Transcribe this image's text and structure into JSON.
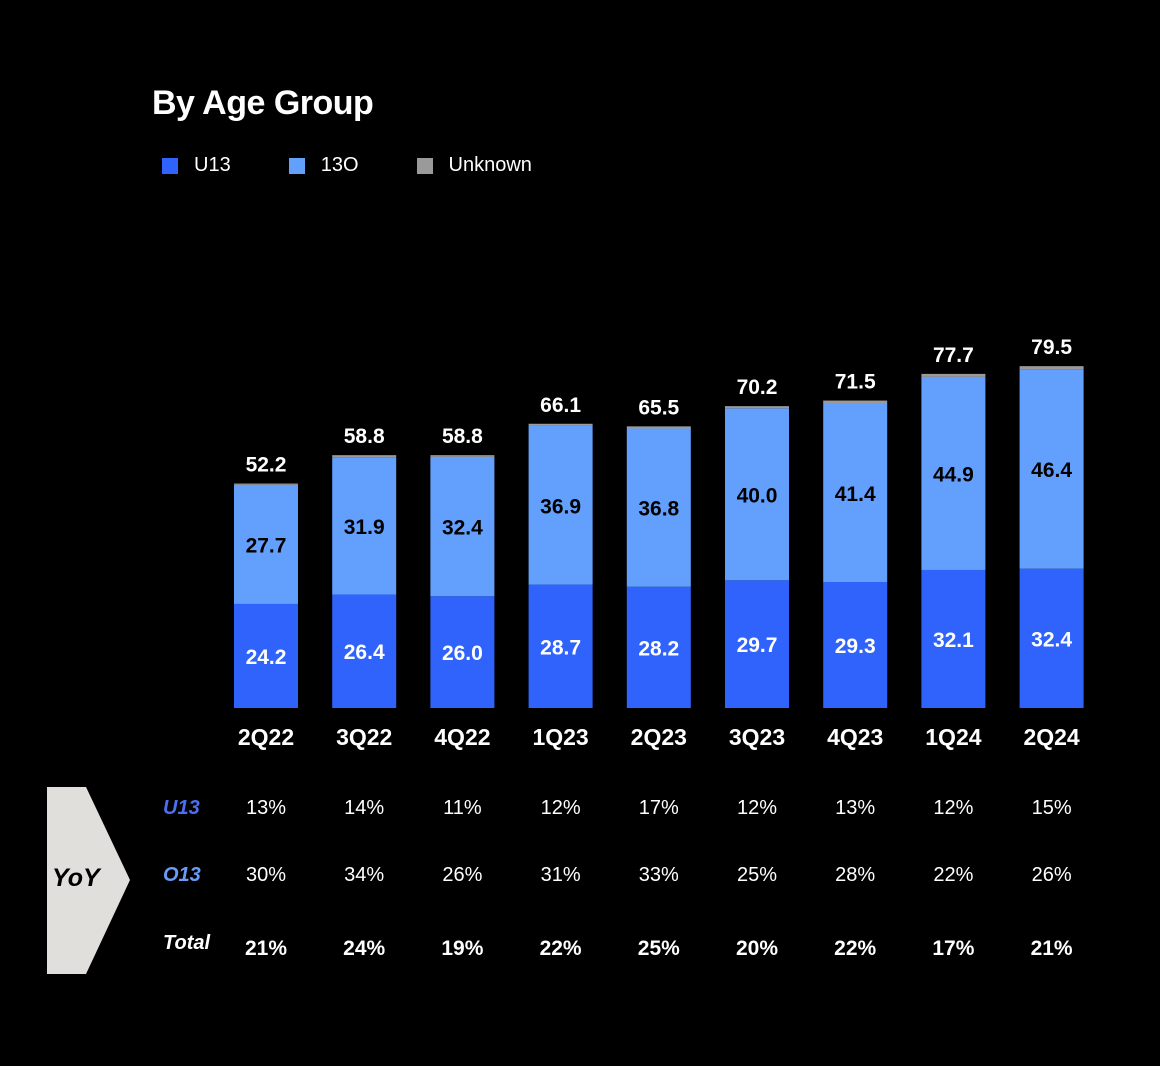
{
  "title": "By Age Group",
  "colors": {
    "u13": "#2f63fb",
    "o13": "#63a0fd",
    "unknown": "#9a9a9a",
    "u13_label": "#4b6ff0",
    "o13_label": "#6a9bf5",
    "arrow_fill": "#e0dfdb"
  },
  "legend": [
    {
      "label": "U13",
      "color": "#2f63fb"
    },
    {
      "label": "13O",
      "color": "#63a0fd"
    },
    {
      "label": "Unknown",
      "color": "#9a9a9a"
    }
  ],
  "chart_data": {
    "type": "bar",
    "stacked": true,
    "title": "By Age Group",
    "categories": [
      "2Q22",
      "3Q22",
      "4Q22",
      "1Q23",
      "2Q23",
      "3Q23",
      "4Q23",
      "1Q24",
      "2Q24"
    ],
    "series": [
      {
        "name": "U13",
        "values": [
          24.2,
          26.4,
          26.0,
          28.7,
          28.2,
          29.7,
          29.3,
          32.1,
          32.4
        ]
      },
      {
        "name": "13O",
        "values": [
          27.7,
          31.9,
          32.4,
          36.9,
          36.8,
          40.0,
          41.4,
          44.9,
          46.4
        ]
      },
      {
        "name": "Unknown",
        "values": [
          0.3,
          0.5,
          0.4,
          0.5,
          0.5,
          0.5,
          0.8,
          0.7,
          0.7
        ]
      }
    ],
    "totals": [
      "52.2",
      "58.8",
      "58.8",
      "66.1",
      "65.5",
      "70.2",
      "71.5",
      "77.7",
      "79.5"
    ],
    "u13_labels": [
      "24.2",
      "26.4",
      "26.0",
      "28.7",
      "28.2",
      "29.7",
      "29.3",
      "32.1",
      "32.4"
    ],
    "o13_labels": [
      "27.7",
      "31.9",
      "32.4",
      "36.9",
      "36.8",
      "40.0",
      "41.4",
      "44.9",
      "46.4"
    ],
    "legend_position": "top-left",
    "grid": false,
    "ylim": [
      0,
      85
    ]
  },
  "yoy": {
    "label": "YoY",
    "rows": [
      {
        "label": "U13",
        "values": [
          "13%",
          "14%",
          "11%",
          "12%",
          "17%",
          "12%",
          "13%",
          "12%",
          "15%"
        ]
      },
      {
        "label": "O13",
        "values": [
          "30%",
          "34%",
          "26%",
          "31%",
          "33%",
          "25%",
          "28%",
          "22%",
          "26%"
        ]
      },
      {
        "label": "Total",
        "values": [
          "21%",
          "24%",
          "19%",
          "22%",
          "25%",
          "20%",
          "22%",
          "17%",
          "21%"
        ]
      }
    ]
  }
}
